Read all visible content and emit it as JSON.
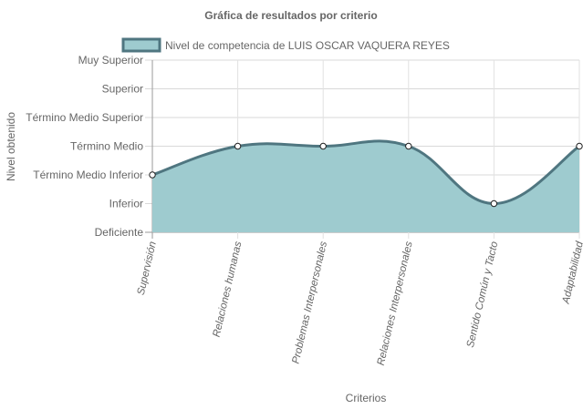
{
  "chart_data": {
    "type": "area",
    "title": "Gráfica de resultados por criterio",
    "xlabel": "Criterios",
    "ylabel": "Nivel obtenido",
    "categories": [
      "Supervisión",
      "Relaciones humanas",
      "Problemas Interpersonales",
      "Relaciones Interpersonales",
      "Sentido Común y Tacto",
      "Adaptabilidad"
    ],
    "y_levels": [
      "Deficiente",
      "Inferior",
      "Término Medio Inferior",
      "Término Medio",
      "Término Medio Superior",
      "Superior",
      "Muy Superior"
    ],
    "ylim": [
      0,
      6
    ],
    "series": [
      {
        "name": "Nivel de competencia de LUIS OSCAR VAQUERA REYES",
        "values": [
          2,
          3,
          3,
          3,
          1,
          3
        ]
      }
    ],
    "colors": {
      "fill": "#9ecbcf",
      "line": "#4f7680",
      "point_fill": "#ffffff",
      "grid": "#d6d6d6"
    },
    "grid": true,
    "legend_position": "top"
  }
}
